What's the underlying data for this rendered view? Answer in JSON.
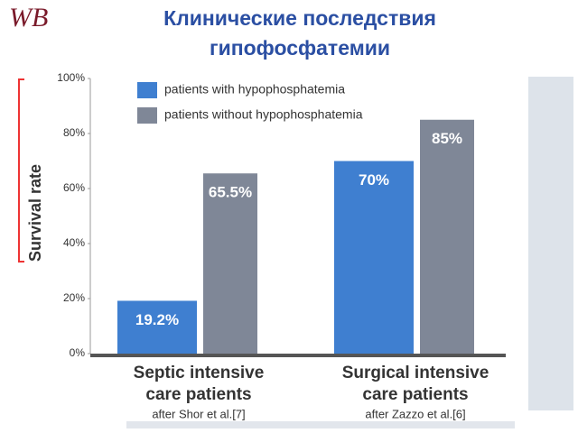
{
  "logo": "WB",
  "title_lines": [
    "Клинические последствия",
    "гипофосфатемии"
  ],
  "chart_data": {
    "type": "bar",
    "ylabel": "Survival rate",
    "categories": [
      [
        "Septic intensive",
        "care patients"
      ],
      [
        "Surgical intensive",
        "care patients"
      ]
    ],
    "category_notes": [
      "after Shor et al.[7]",
      "after Zazzo et al.[6]"
    ],
    "series": [
      {
        "name": "patients with hypophosphatemia",
        "color": "#3f7fd0",
        "values": [
          19.2,
          70
        ],
        "value_labels": [
          "19.2%",
          "70%"
        ]
      },
      {
        "name": "patients without hypophosphatemia",
        "color": "#7f8797",
        "values": [
          65.5,
          85
        ],
        "value_labels": [
          "65.5%",
          "85%"
        ]
      }
    ],
    "ylim": [
      0,
      100
    ],
    "yticks": [
      {
        "value": 0,
        "label": "0%"
      },
      {
        "value": 20,
        "label": "20%"
      },
      {
        "value": 40,
        "label": "40%"
      },
      {
        "value": 60,
        "label": "60%"
      },
      {
        "value": 80,
        "label": "80%"
      },
      {
        "value": 100,
        "label": "100%"
      }
    ],
    "grid": false
  }
}
